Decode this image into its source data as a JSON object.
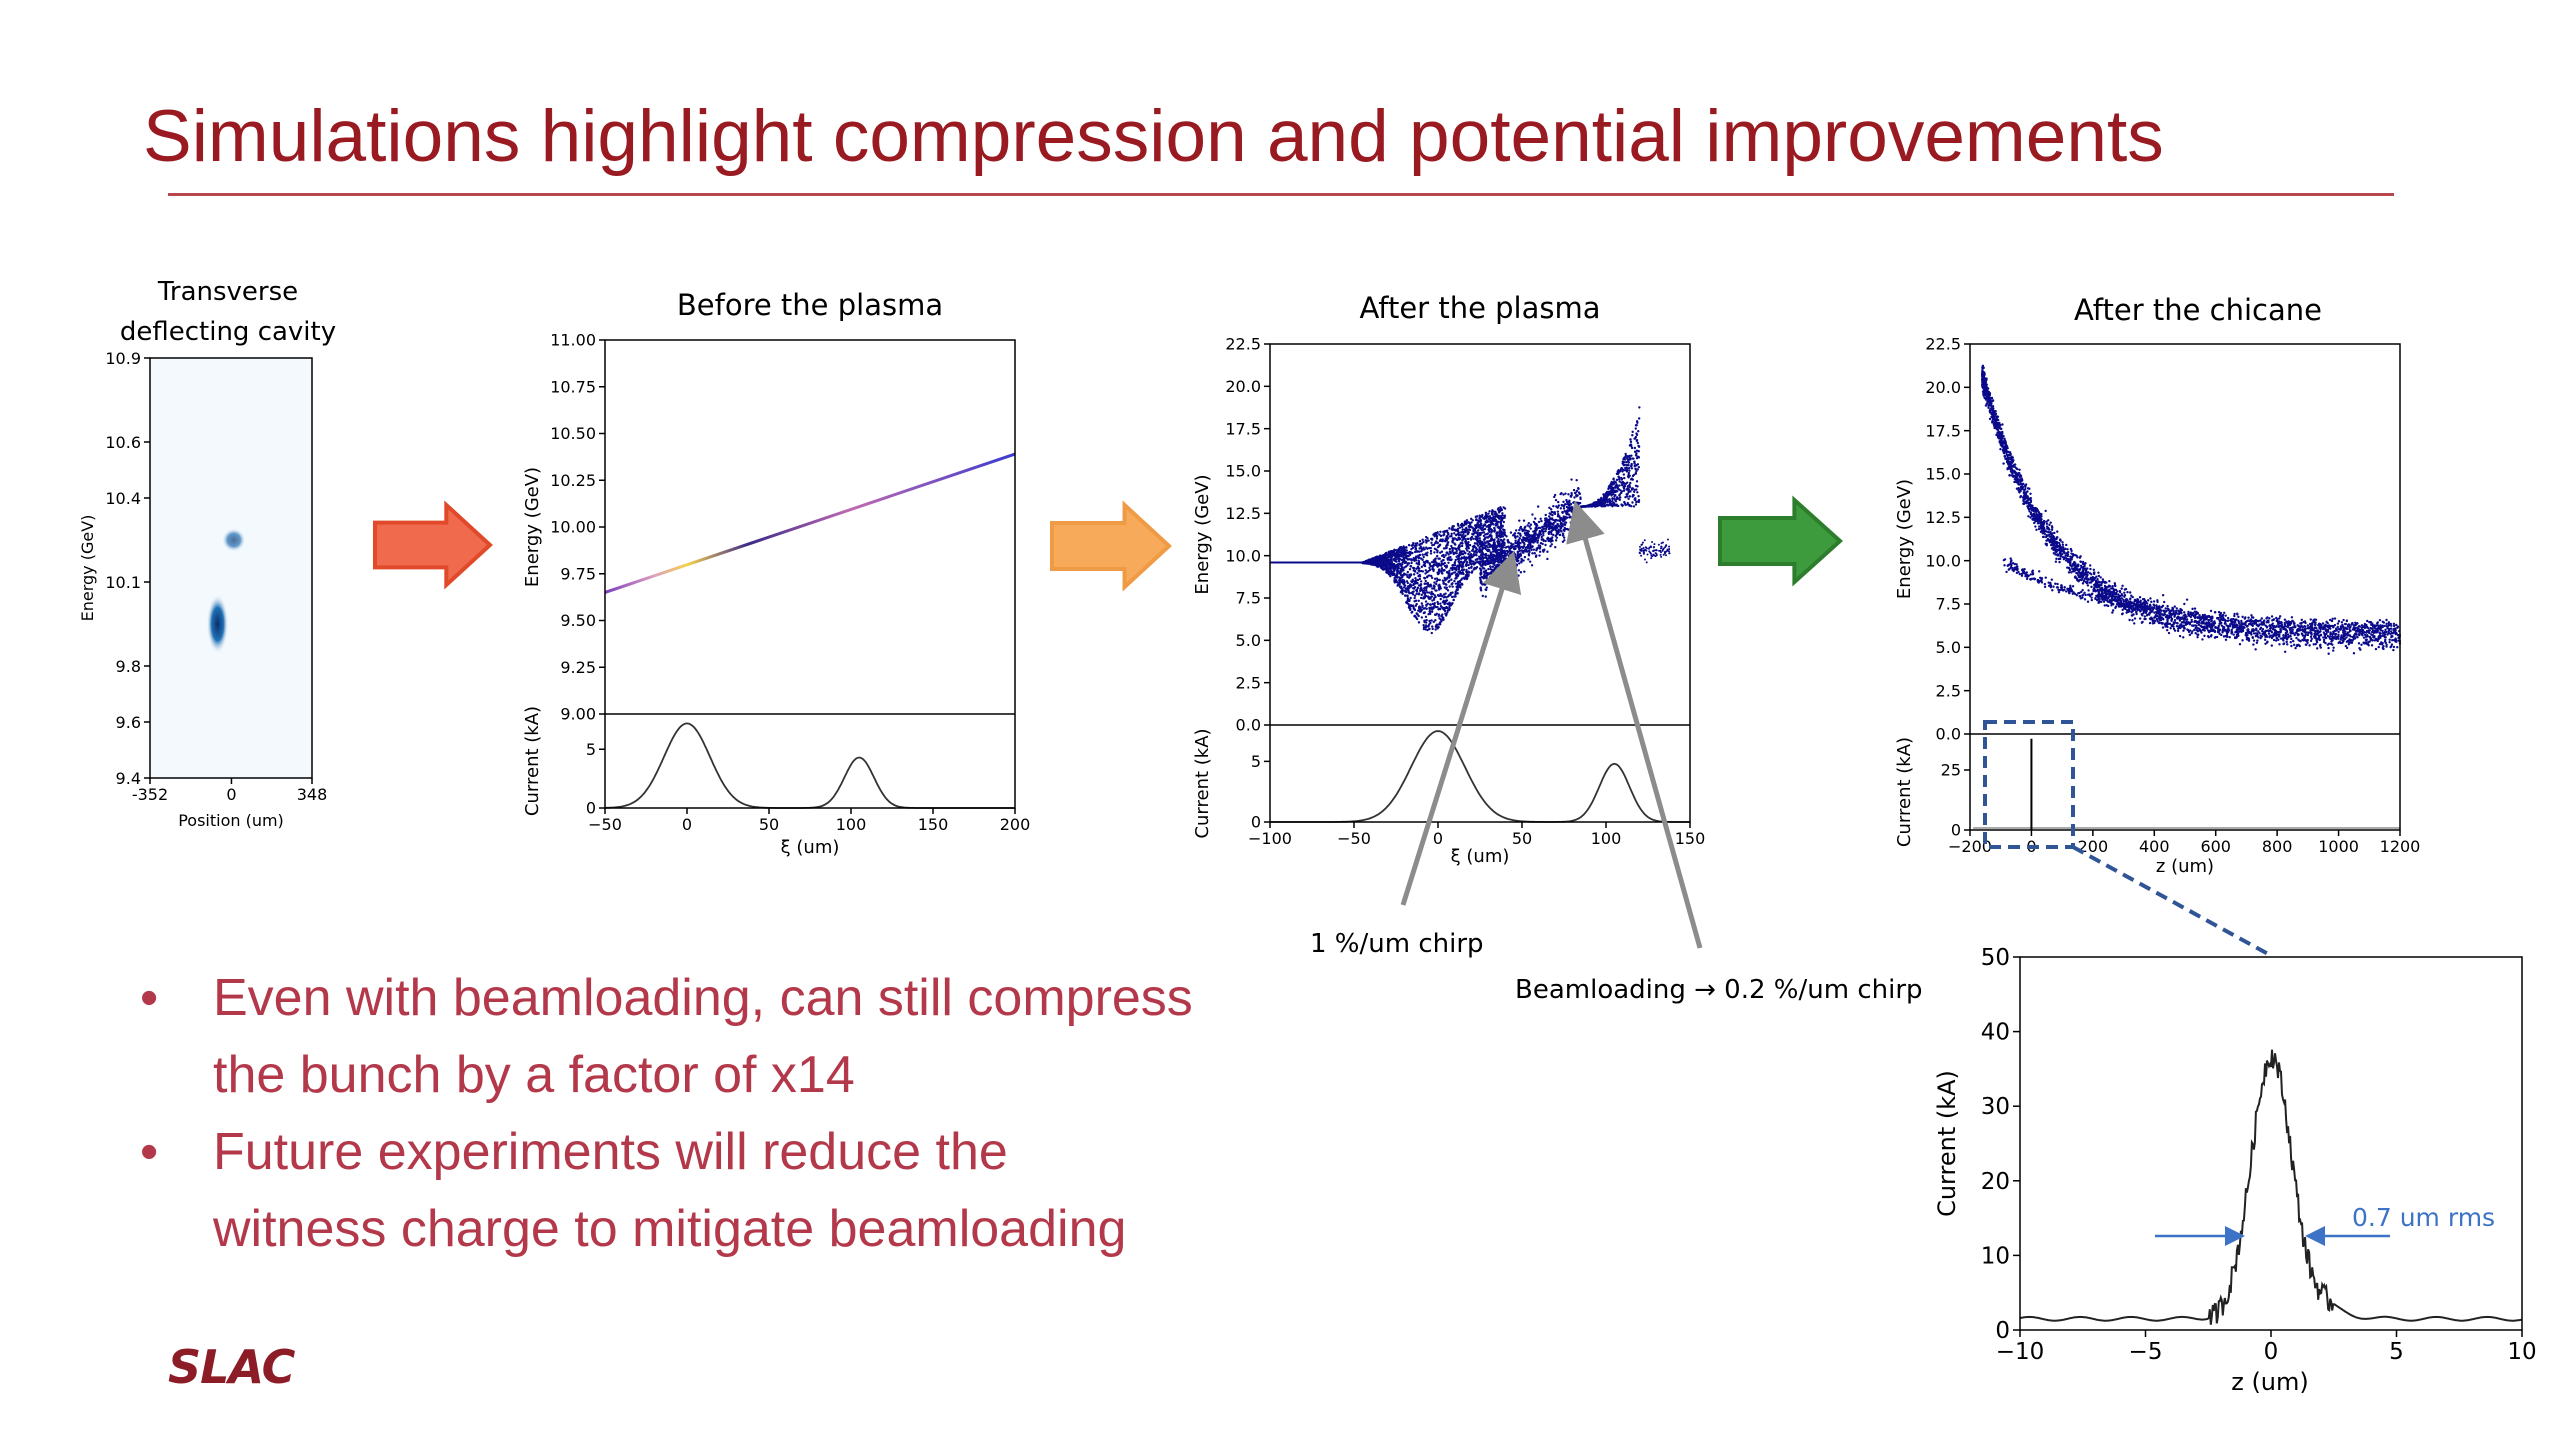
{
  "slide": {
    "title": "Simulations highlight compression and potential improvements",
    "bullets": [
      [
        "Even with beamloading, can still compress",
        "the bunch by a factor of x14"
      ],
      [
        "Future experiments will reduce the",
        "witness charge to mitigate beamloading"
      ]
    ],
    "logo_text": "SLAC"
  },
  "annotations": {
    "chirp1": "1 %/um chirp",
    "chirp2": "Beamloading → 0.2 %/um chirp",
    "rms": "0.7 um rms"
  },
  "colors": {
    "title": "#9a1a22",
    "bullet": "#b3384a",
    "arrow_red": "#f06a4e",
    "arrow_orange": "#f7aa59",
    "arrow_green": "#3d9b3d",
    "particles": "#0a0a8a",
    "zoom_box": "#2f5597",
    "rms_arrow": "#3d73c6"
  },
  "chart_data": [
    {
      "id": "tcav",
      "type": "heatmap",
      "title": "Transverse\ndeflecting cavity",
      "xlabel": "Position (um)",
      "ylabel": "Energy (GeV)",
      "xlim": [
        -352,
        348
      ],
      "ylim": [
        9.4,
        10.9
      ],
      "xticks": [
        -352,
        0,
        348
      ],
      "yticks": [
        9.4,
        9.6,
        9.8,
        10.1,
        10.4,
        10.6,
        10.9
      ],
      "blobs": [
        {
          "x": 10,
          "y": 10.25,
          "intensity": 0.7
        },
        {
          "x": -60,
          "y": 9.95,
          "intensity": 1.0
        }
      ]
    },
    {
      "id": "before",
      "type": "line",
      "title": "Before the plasma",
      "top": {
        "ylabel": "Energy (GeV)",
        "ylim": [
          9.0,
          11.0
        ],
        "yticks": [
          9.0,
          9.25,
          9.5,
          9.75,
          10.0,
          10.25,
          10.5,
          10.75,
          11.0
        ],
        "x": [
          -50,
          200
        ],
        "y": [
          9.65,
          10.39
        ]
      },
      "bottom": {
        "ylabel": "Current (kA)",
        "ylim": [
          0,
          8
        ],
        "yticks": [
          0,
          5
        ],
        "xlabel": "ξ (um)",
        "xlim": [
          -50,
          200
        ],
        "xticks": [
          -50,
          0,
          50,
          100,
          150,
          200
        ],
        "peaks": [
          {
            "center": 0,
            "height": 7.2,
            "sigma": 14
          },
          {
            "center": 105,
            "height": 4.3,
            "sigma": 9
          }
        ]
      }
    },
    {
      "id": "after_plasma",
      "type": "scatter",
      "title": "After the plasma",
      "top": {
        "ylabel": "Energy (GeV)",
        "ylim": [
          0,
          22.5
        ],
        "yticks": [
          0.0,
          2.5,
          5.0,
          7.5,
          10.0,
          12.5,
          15.0,
          17.5,
          20.0,
          22.5
        ]
      },
      "bottom": {
        "ylabel": "Current (kA)",
        "ylim": [
          0,
          8
        ],
        "yticks": [
          0,
          5
        ],
        "xlabel": "ξ (um)",
        "xlim": [
          -100,
          150
        ],
        "xticks": [
          -100,
          -50,
          0,
          50,
          100,
          150
        ],
        "peaks": [
          {
            "center": 0,
            "height": 7.5,
            "sigma": 16
          },
          {
            "center": 105,
            "height": 4.8,
            "sigma": 9
          }
        ]
      }
    },
    {
      "id": "after_chicane",
      "type": "scatter",
      "title": "After the chicane",
      "top": {
        "ylabel": "Energy (GeV)",
        "ylim": [
          0,
          22.5
        ],
        "yticks": [
          0.0,
          2.5,
          5.0,
          7.5,
          10.0,
          12.5,
          15.0,
          17.5,
          20.0,
          22.5
        ]
      },
      "bottom": {
        "ylabel": "Current (kA)",
        "ylim": [
          0,
          40
        ],
        "yticks": [
          0,
          25
        ],
        "xlabel": "z (um)",
        "xlim": [
          -200,
          1200
        ],
        "xticks": [
          -200,
          0,
          200,
          400,
          600,
          800,
          1000,
          1200
        ],
        "spike_center": 0,
        "spike_height": 38
      }
    },
    {
      "id": "zoom",
      "type": "line",
      "xlabel": "z (um)",
      "ylabel": "Current (kA)",
      "xlim": [
        -10,
        10
      ],
      "ylim": [
        0,
        50
      ],
      "xticks": [
        -10,
        -5,
        0,
        5,
        10
      ],
      "yticks": [
        0,
        10,
        20,
        30,
        40,
        50
      ],
      "peak": 38,
      "rms": 0.7
    }
  ]
}
